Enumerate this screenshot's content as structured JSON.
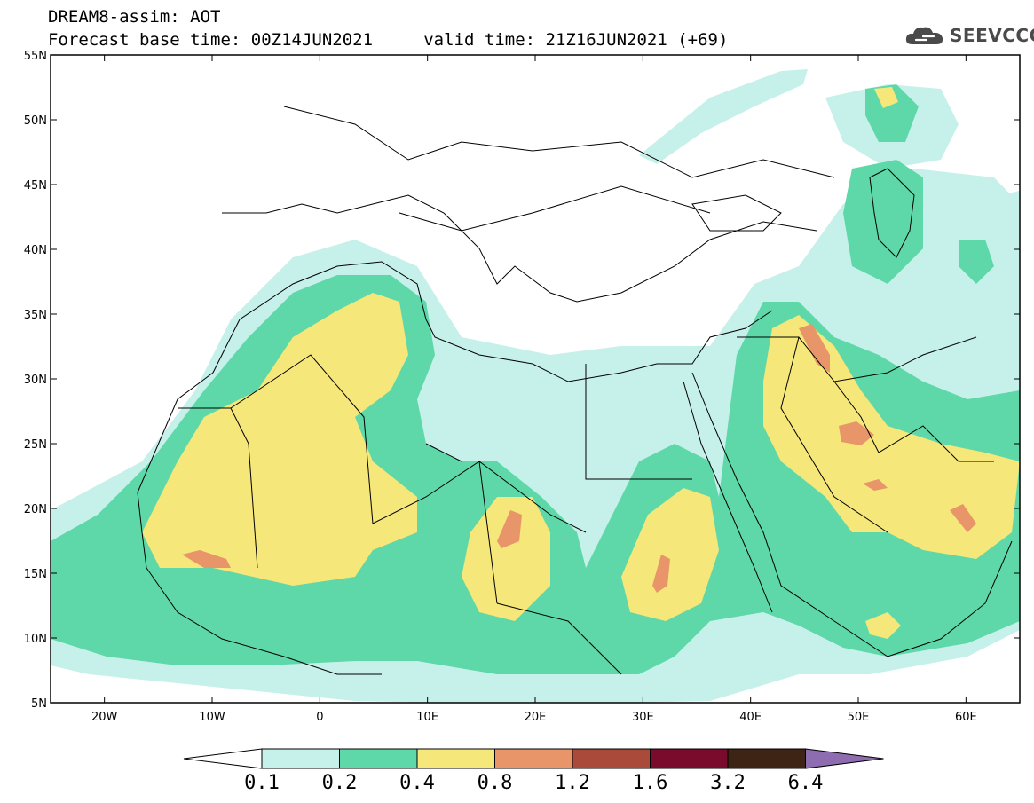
{
  "header": {
    "line1": "DREAM8-assim: AOT",
    "line2": "Forecast base time: 00Z14JUN2021     valid time: 21Z16JUN2021 (+69)"
  },
  "logo": {
    "text": "SEEVCCC",
    "icon": "cloud-icon"
  },
  "map": {
    "lon_range": [
      -25,
      65
    ],
    "lat_range": [
      5,
      55
    ],
    "lat_ticks": [
      "55N",
      "50N",
      "45N",
      "40N",
      "35N",
      "30N",
      "25N",
      "20N",
      "15N",
      "10N",
      "5N"
    ],
    "lon_ticks": [
      "20W",
      "10W",
      "0",
      "10E",
      "20E",
      "30E",
      "40E",
      "50E",
      "60E"
    ]
  },
  "colorbar": {
    "labels": [
      "0.1",
      "0.2",
      "0.4",
      "0.8",
      "1.2",
      "1.6",
      "3.2",
      "6.4"
    ],
    "colors": [
      "#c6f0ea",
      "#5ed8a8",
      "#f5e77a",
      "#e8956a",
      "#a94a3b",
      "#7a0b2c",
      "#3d2414",
      "#8e6cb0"
    ]
  }
}
